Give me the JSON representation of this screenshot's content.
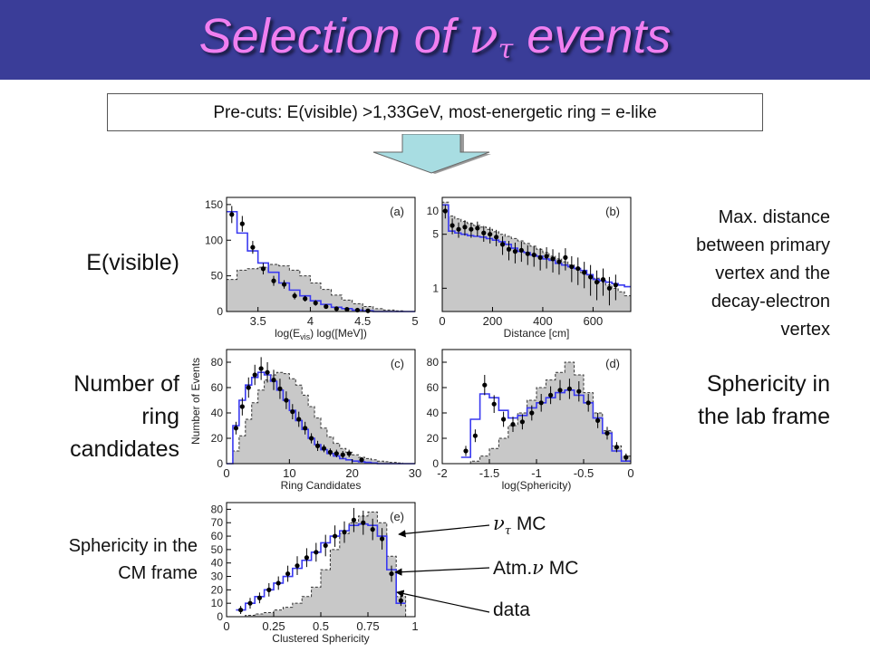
{
  "slide": {
    "title_prefix": "Selection of ",
    "title_nu": "ν",
    "title_tau": "τ",
    "title_suffix": " events",
    "precut": "Pre-cuts: E(visible) >1,33GeV, most-energetic ring = e-like",
    "label_evis": "E(visible)",
    "label_ring_lines": [
      "Number of",
      "ring",
      "candidates"
    ],
    "label_dist_lines": [
      "Max. distance",
      "between primary",
      "vertex and the",
      "decay-electron",
      "vertex"
    ],
    "label_sph_lab_lines": [
      "Sphericity in",
      "the lab frame"
    ],
    "label_sph_cm_lines": [
      "Sphericity in the",
      "CM frame"
    ],
    "legend_nutau_nu": "ν",
    "legend_nutau_tau": "τ",
    "legend_nutau_suffix": " MC",
    "legend_atm_prefix": "Atm.",
    "legend_atm_nu": "ν",
    "legend_atm_suffix": " MC",
    "legend_data": "data"
  },
  "colors": {
    "title_bar": "#3a3d98",
    "title_text": "#f07ff0",
    "nutau_mc": "#3a3af0",
    "atm_mc_fill": "#c8c8c8",
    "arrow_fill": "#a8dde2"
  },
  "chart_data": [
    {
      "id": "a",
      "panel_label": "(a)",
      "type": "histogram",
      "xlabel": "log(E",
      "xlabel_sub": "vis",
      "xlabel_suffix": ") log([MeV])",
      "xlim": [
        3.2,
        5.0
      ],
      "ylim": [
        0,
        160
      ],
      "xticks": [
        3.5,
        4,
        4.5,
        5
      ],
      "xtick_labels": [
        "3.5",
        "4",
        "4.5",
        "5"
      ],
      "yticks": [
        0,
        50,
        100,
        150
      ],
      "ytick_labels": [
        "0",
        "50",
        "100",
        "150"
      ],
      "bin_edges": [
        3.2,
        3.3,
        3.4,
        3.5,
        3.6,
        3.7,
        3.8,
        3.9,
        4.0,
        4.1,
        4.2,
        4.3,
        4.4,
        4.5,
        4.6,
        4.7,
        4.8,
        4.9,
        5.0
      ],
      "atm_mc": [
        45,
        58,
        60,
        62,
        66,
        64,
        58,
        50,
        40,
        31,
        23,
        16,
        11,
        7,
        4,
        2,
        1,
        0
      ],
      "nutau_mc": [
        140,
        110,
        85,
        68,
        55,
        40,
        30,
        22,
        15,
        10,
        6,
        4,
        2,
        1,
        0,
        0,
        0,
        0
      ],
      "data": [
        [
          3.25,
          136,
          12
        ],
        [
          3.35,
          123,
          11
        ],
        [
          3.45,
          90,
          9
        ],
        [
          3.55,
          60,
          8
        ],
        [
          3.65,
          43,
          7
        ],
        [
          3.75,
          38,
          6
        ],
        [
          3.85,
          22,
          5
        ],
        [
          3.95,
          18,
          4
        ],
        [
          4.05,
          12,
          4
        ],
        [
          4.15,
          7,
          3
        ],
        [
          4.25,
          4,
          2
        ],
        [
          4.35,
          3,
          2
        ],
        [
          4.45,
          2,
          1.5
        ],
        [
          4.55,
          1,
          1
        ]
      ]
    },
    {
      "id": "b",
      "panel_label": "(b)",
      "type": "histogram",
      "yscale": "log",
      "xlabel": "Distance   [cm]",
      "xlim": [
        0,
        750
      ],
      "ylim": [
        0.5,
        15
      ],
      "xticks": [
        0,
        200,
        400,
        600
      ],
      "xtick_labels": [
        "0",
        "200",
        "400",
        "600"
      ],
      "yticks": [
        1,
        5,
        10
      ],
      "ytick_labels": [
        "1",
        "5",
        "10"
      ],
      "bin_edges": [
        0,
        25,
        50,
        75,
        100,
        125,
        150,
        175,
        200,
        225,
        250,
        275,
        300,
        325,
        350,
        375,
        400,
        425,
        450,
        475,
        500,
        525,
        550,
        575,
        600,
        625,
        650,
        675,
        700,
        725,
        750
      ],
      "atm_mc": [
        13,
        8.6,
        7.9,
        7.3,
        6.9,
        6.5,
        6.2,
        5.8,
        5.4,
        5.0,
        4.7,
        4.4,
        4.1,
        3.8,
        3.5,
        3.2,
        2.9,
        2.6,
        2.4,
        2.2,
        2.0,
        1.8,
        1.6,
        1.5,
        1.35,
        1.2,
        1.1,
        1.0,
        0.9,
        0.8
      ],
      "nutau_mc": [
        12,
        5.5,
        5.2,
        5.0,
        4.8,
        4.7,
        4.6,
        4.4,
        4.2,
        4.0,
        3.7,
        3.3,
        3.0,
        2.9,
        2.7,
        2.6,
        2.4,
        2.3,
        2.1,
        2.0,
        1.9,
        1.8,
        1.7,
        1.5,
        1.3,
        1.25,
        1.2,
        1.15,
        1.1,
        1.05
      ],
      "data": [
        [
          12,
          10,
          2
        ],
        [
          40,
          6.5,
          1.5
        ],
        [
          65,
          5.8,
          1.3
        ],
        [
          90,
          6.2,
          1.4
        ],
        [
          115,
          5.8,
          1.3
        ],
        [
          140,
          6.0,
          1.3
        ],
        [
          165,
          5.2,
          1.2
        ],
        [
          190,
          5.0,
          1.2
        ],
        [
          215,
          4.6,
          1.1
        ],
        [
          240,
          3.7,
          1.0
        ],
        [
          265,
          3.2,
          0.9
        ],
        [
          290,
          3.0,
          0.9
        ],
        [
          315,
          3.1,
          0.9
        ],
        [
          340,
          2.8,
          0.8
        ],
        [
          365,
          2.7,
          0.8
        ],
        [
          390,
          2.5,
          0.8
        ],
        [
          415,
          2.6,
          0.8
        ],
        [
          440,
          2.4,
          0.8
        ],
        [
          465,
          2.2,
          0.7
        ],
        [
          490,
          2.5,
          0.8
        ],
        [
          515,
          1.9,
          0.7
        ],
        [
          540,
          1.8,
          0.7
        ],
        [
          565,
          1.6,
          0.6
        ],
        [
          590,
          1.4,
          0.6
        ],
        [
          615,
          1.2,
          0.5
        ],
        [
          640,
          1.3,
          0.5
        ],
        [
          665,
          1.0,
          0.4
        ],
        [
          690,
          1.1,
          0.4
        ]
      ]
    },
    {
      "id": "c",
      "panel_label": "(c)",
      "type": "histogram",
      "xlabel": "Ring Candidates",
      "ylabel": "Number of Events",
      "xlim": [
        0,
        30
      ],
      "ylim": [
        0,
        90
      ],
      "xticks": [
        0,
        10,
        20,
        30
      ],
      "xtick_labels": [
        "0",
        "10",
        "20",
        "30"
      ],
      "yticks": [
        0,
        20,
        40,
        60,
        80
      ],
      "ytick_labels": [
        "0",
        "20",
        "40",
        "60",
        "80"
      ],
      "bin_edges": [
        0,
        1,
        2,
        3,
        4,
        5,
        6,
        7,
        8,
        9,
        10,
        11,
        12,
        13,
        14,
        15,
        16,
        17,
        18,
        19,
        20,
        21,
        22,
        23,
        24,
        25,
        26,
        27,
        28,
        29,
        30
      ],
      "atm_mc": [
        0,
        10,
        22,
        35,
        48,
        58,
        66,
        70,
        72,
        71,
        67,
        62,
        54,
        45,
        36,
        28,
        21,
        16,
        12,
        9,
        7,
        5,
        4,
        3,
        2,
        1.5,
        1,
        0.5,
        0,
        0
      ],
      "nutau_mc": [
        0,
        30,
        50,
        62,
        68,
        72,
        70,
        65,
        58,
        50,
        42,
        34,
        27,
        20,
        15,
        11,
        8,
        6,
        4,
        3,
        2,
        1.5,
        1,
        0.5,
        0,
        0,
        0,
        0,
        0,
        0
      ],
      "data": [
        [
          1.5,
          28,
          5
        ],
        [
          2.5,
          45,
          7
        ],
        [
          3.5,
          60,
          8
        ],
        [
          4.5,
          70,
          8
        ],
        [
          5.5,
          75,
          9
        ],
        [
          6.5,
          72,
          8
        ],
        [
          7.5,
          66,
          8
        ],
        [
          8.5,
          59,
          8
        ],
        [
          9.5,
          50,
          7
        ],
        [
          10.5,
          41,
          6
        ],
        [
          11.5,
          35,
          6
        ],
        [
          12.5,
          28,
          5
        ],
        [
          13.5,
          20,
          4
        ],
        [
          14.5,
          14,
          4
        ],
        [
          15.5,
          12,
          3
        ],
        [
          16.5,
          9,
          3
        ],
        [
          17.5,
          8,
          3
        ],
        [
          18.5,
          7,
          3
        ],
        [
          19.5,
          8,
          3
        ],
        [
          21.5,
          3,
          2
        ]
      ]
    },
    {
      "id": "d",
      "panel_label": "(d)",
      "type": "histogram",
      "xlabel": "log(Sphericity)",
      "xlim": [
        -2,
        0
      ],
      "ylim": [
        0,
        90
      ],
      "xticks": [
        -2,
        -1.5,
        -1,
        -0.5,
        0
      ],
      "xtick_labels": [
        "-2",
        "-1.5",
        "-1",
        "-0.5",
        "0"
      ],
      "yticks": [
        0,
        20,
        40,
        60,
        80
      ],
      "ytick_labels": [
        "0",
        "20",
        "40",
        "60",
        "80"
      ],
      "bin_edges": [
        -1.8,
        -1.7,
        -1.6,
        -1.5,
        -1.4,
        -1.3,
        -1.2,
        -1.1,
        -1.0,
        -0.9,
        -0.8,
        -0.7,
        -0.6,
        -0.5,
        -0.4,
        -0.3,
        -0.2,
        -0.1,
        0
      ],
      "atm_mc": [
        0,
        2,
        6,
        12,
        20,
        30,
        40,
        50,
        60,
        66,
        72,
        80,
        70,
        56,
        40,
        26,
        14,
        6
      ],
      "nutau_mc": [
        5,
        35,
        55,
        52,
        42,
        36,
        38,
        44,
        48,
        52,
        56,
        58,
        54,
        48,
        36,
        24,
        10,
        2
      ],
      "data": [
        [
          -1.75,
          10,
          4
        ],
        [
          -1.65,
          22,
          5
        ],
        [
          -1.55,
          62,
          8
        ],
        [
          -1.45,
          47,
          7
        ],
        [
          -1.35,
          35,
          6
        ],
        [
          -1.25,
          31,
          6
        ],
        [
          -1.15,
          33,
          6
        ],
        [
          -1.05,
          40,
          6
        ],
        [
          -0.95,
          48,
          7
        ],
        [
          -0.85,
          54,
          7
        ],
        [
          -0.75,
          58,
          8
        ],
        [
          -0.65,
          59,
          8
        ],
        [
          -0.55,
          57,
          8
        ],
        [
          -0.45,
          48,
          7
        ],
        [
          -0.35,
          34,
          6
        ],
        [
          -0.25,
          24,
          5
        ],
        [
          -0.15,
          13,
          4
        ],
        [
          -0.05,
          5,
          3
        ]
      ]
    },
    {
      "id": "e",
      "panel_label": "(e)",
      "type": "histogram",
      "xlabel": "Clustered Sphericity",
      "xlim": [
        0,
        1
      ],
      "ylim": [
        0,
        85
      ],
      "xticks": [
        0,
        0.25,
        0.5,
        0.75,
        1
      ],
      "xtick_labels": [
        "0",
        "0.25",
        "0.5",
        "0.75",
        "1"
      ],
      "yticks": [
        0,
        10,
        20,
        30,
        40,
        50,
        60,
        70,
        80
      ],
      "ytick_labels": [
        "0",
        "10",
        "20",
        "30",
        "40",
        "50",
        "60",
        "70",
        "80"
      ],
      "bin_edges": [
        0.05,
        0.1,
        0.15,
        0.2,
        0.25,
        0.3,
        0.35,
        0.4,
        0.45,
        0.5,
        0.55,
        0.6,
        0.65,
        0.7,
        0.75,
        0.8,
        0.85,
        0.9,
        0.95
      ],
      "atm_mc": [
        0,
        1,
        2,
        3,
        5,
        7,
        10,
        15,
        22,
        35,
        50,
        62,
        70,
        75,
        78,
        70,
        45,
        15
      ],
      "nutau_mc": [
        5,
        10,
        15,
        20,
        25,
        30,
        36,
        42,
        48,
        55,
        60,
        64,
        68,
        69,
        68,
        60,
        35,
        10
      ],
      "data": [
        [
          0.075,
          5,
          3
        ],
        [
          0.125,
          10,
          4
        ],
        [
          0.175,
          14,
          4
        ],
        [
          0.225,
          20,
          5
        ],
        [
          0.275,
          25,
          5
        ],
        [
          0.325,
          32,
          6
        ],
        [
          0.375,
          38,
          7
        ],
        [
          0.425,
          44,
          7
        ],
        [
          0.475,
          48,
          7
        ],
        [
          0.525,
          53,
          8
        ],
        [
          0.575,
          60,
          8
        ],
        [
          0.625,
          63,
          8
        ],
        [
          0.675,
          72,
          9
        ],
        [
          0.725,
          70,
          9
        ],
        [
          0.775,
          65,
          8
        ],
        [
          0.825,
          58,
          8
        ],
        [
          0.875,
          32,
          6
        ],
        [
          0.925,
          12,
          4
        ]
      ]
    }
  ]
}
